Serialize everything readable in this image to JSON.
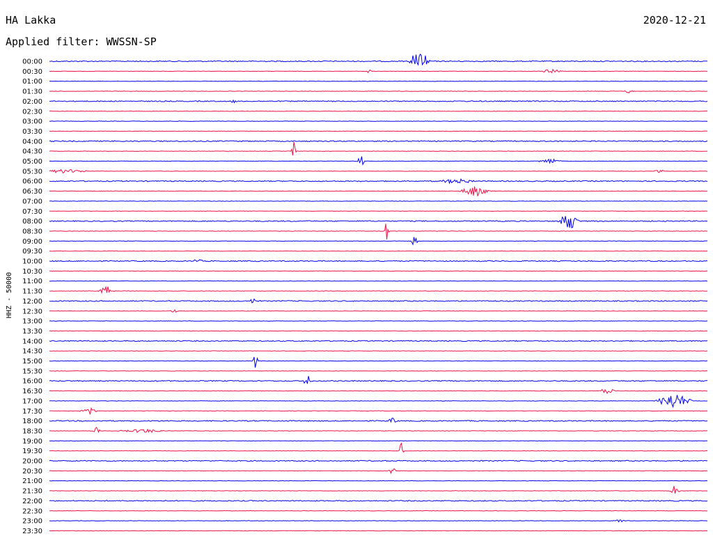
{
  "header": {
    "station": "HA Lakka",
    "filter": "Applied filter: WWSSN-SP",
    "date": "2020-12-21"
  },
  "chart_data": {
    "type": "line",
    "ylabel": "HHZ - 50000",
    "colors": [
      "#0000ee",
      "#ee1144"
    ],
    "rows": [
      "00:00",
      "00:30",
      "01:00",
      "01:30",
      "02:00",
      "02:30",
      "03:00",
      "03:30",
      "04:00",
      "04:30",
      "05:00",
      "05:30",
      "06:00",
      "06:30",
      "07:00",
      "07:30",
      "08:00",
      "08:30",
      "09:00",
      "09:30",
      "10:00",
      "10:30",
      "11:00",
      "11:30",
      "12:00",
      "12:30",
      "13:00",
      "13:30",
      "14:00",
      "14:30",
      "15:00",
      "15:30",
      "16:00",
      "16:30",
      "17:00",
      "17:30",
      "18:00",
      "18:30",
      "19:00",
      "19:30",
      "20:00",
      "20:30",
      "21:00",
      "21:30",
      "22:00",
      "22:30",
      "23:00",
      "23:30"
    ]
  }
}
